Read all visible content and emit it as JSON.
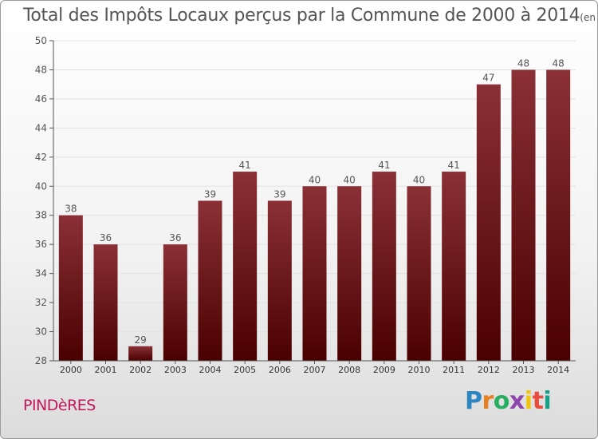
{
  "header": {
    "title": "Total des Impôts Locaux perçus par la Commune de 2000 à 2014",
    "unit": "(en milliers d'€)"
  },
  "footer": {
    "commune": "PINDèRES",
    "logo": [
      "P",
      "r",
      "o",
      "x",
      "i",
      "t",
      "i"
    ]
  },
  "colors": {
    "bar_top": "#8a3036",
    "bar_bottom": "#4a0000",
    "axis": "#555555",
    "grid": "#e2e2e2"
  },
  "chart_data": {
    "type": "bar",
    "title": "Total des Impôts Locaux perçus par la Commune de 2000 à 2014",
    "subtitle": "(en milliers d'€)",
    "categories": [
      "2000",
      "2001",
      "2002",
      "2003",
      "2004",
      "2005",
      "2006",
      "2007",
      "2008",
      "2009",
      "2010",
      "2011",
      "2012",
      "2013",
      "2014"
    ],
    "values": [
      38,
      36,
      29,
      36,
      39,
      41,
      39,
      40,
      40,
      41,
      40,
      41,
      47,
      48,
      48
    ],
    "ylim": [
      28,
      50
    ],
    "yticks": [
      28,
      30,
      32,
      34,
      36,
      38,
      40,
      42,
      44,
      46,
      48,
      50
    ],
    "grid": true,
    "legend": "none"
  }
}
